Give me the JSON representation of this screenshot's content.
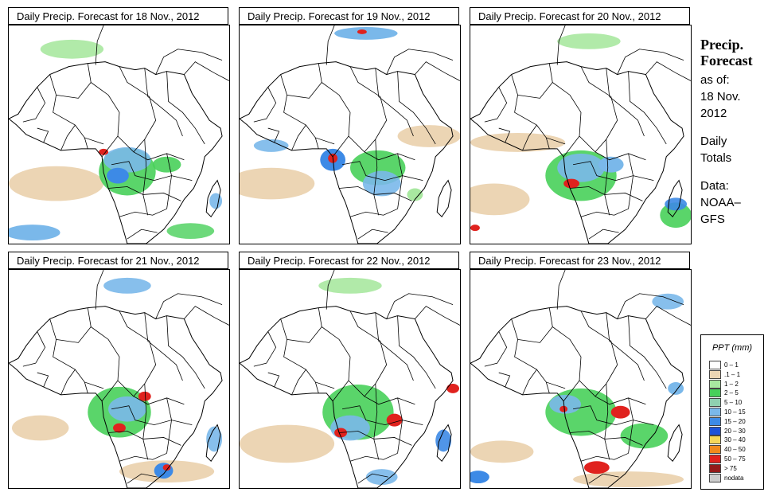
{
  "panels": [
    {
      "title": "Daily Precip. Forecast for  18 Nov., 2012"
    },
    {
      "title": "Daily Precip. Forecast for  19 Nov., 2012"
    },
    {
      "title": "Daily Precip. Forecast for  20 Nov., 2012"
    },
    {
      "title": "Daily Precip. Forecast for  21 Nov., 2012"
    },
    {
      "title": "Daily Precip. Forecast for  22 Nov., 2012"
    },
    {
      "title": "Daily Precip. Forecast for  23 Nov., 2012"
    }
  ],
  "side": {
    "title_line1": "Precip.",
    "title_line2": "Forecast",
    "asof_label": "as of:",
    "date_line1": "18 Nov.",
    "date_line2": "2012",
    "daily_line1": "Daily",
    "daily_line2": "Totals",
    "data_line1": "Data:",
    "data_line2": "NOAA–",
    "data_line3": "GFS"
  },
  "legend": {
    "title": "PPT (mm)",
    "items": [
      {
        "label": "0 – 1",
        "color": "#ffffff"
      },
      {
        "label": ".1 – 1",
        "color": "#ecd5b4"
      },
      {
        "label": "1 – 2",
        "color": "#a8e8a0"
      },
      {
        "label": "2 – 5",
        "color": "#48d05a"
      },
      {
        "label": "5 – 10",
        "color": "#8fd0b0"
      },
      {
        "label": "10 – 15",
        "color": "#7ab8ea"
      },
      {
        "label": "15 – 20",
        "color": "#3d8ae6"
      },
      {
        "label": "20 – 30",
        "color": "#1c52d8"
      },
      {
        "label": "30 – 40",
        "color": "#f5d75a"
      },
      {
        "label": "40 – 50",
        "color": "#f08a1e"
      },
      {
        "label": "50 – 75",
        "color": "#e0221e"
      },
      {
        "label": "> 75",
        "color": "#941a1a"
      },
      {
        "label": "nodata",
        "color": "#cccccc"
      }
    ]
  },
  "colors": {
    "sand": "#ecd5b4",
    "lightgreen": "#a8e8a0",
    "green": "#48d05a",
    "lightblue": "#7ab8ea",
    "blue": "#3d8ae6",
    "darkblue": "#1c52d8",
    "red": "#e0221e",
    "orange": "#f08a1e",
    "border": "#000000"
  }
}
